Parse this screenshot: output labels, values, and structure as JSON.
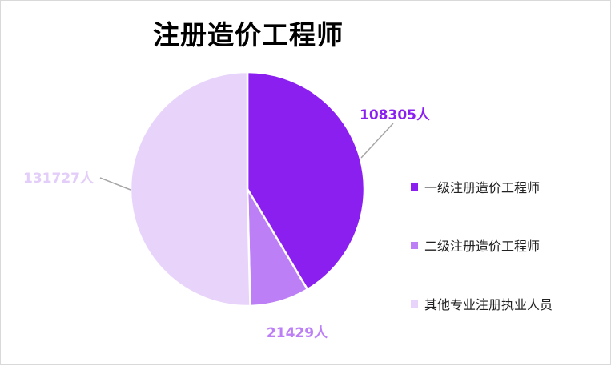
{
  "chart_data": {
    "type": "pie",
    "title": "注册造价工程师",
    "categories": [
      "一级注册造价工程师",
      "二级注册造价工程师",
      "其他专业注册执业人员"
    ],
    "values": [
      108305,
      21429,
      131727
    ],
    "data_labels": [
      "108305人",
      "21429人",
      "131727人"
    ],
    "colors": [
      "#8b1ff0",
      "#bc7ff5",
      "#e8d4fb"
    ],
    "legend_position": "right"
  }
}
